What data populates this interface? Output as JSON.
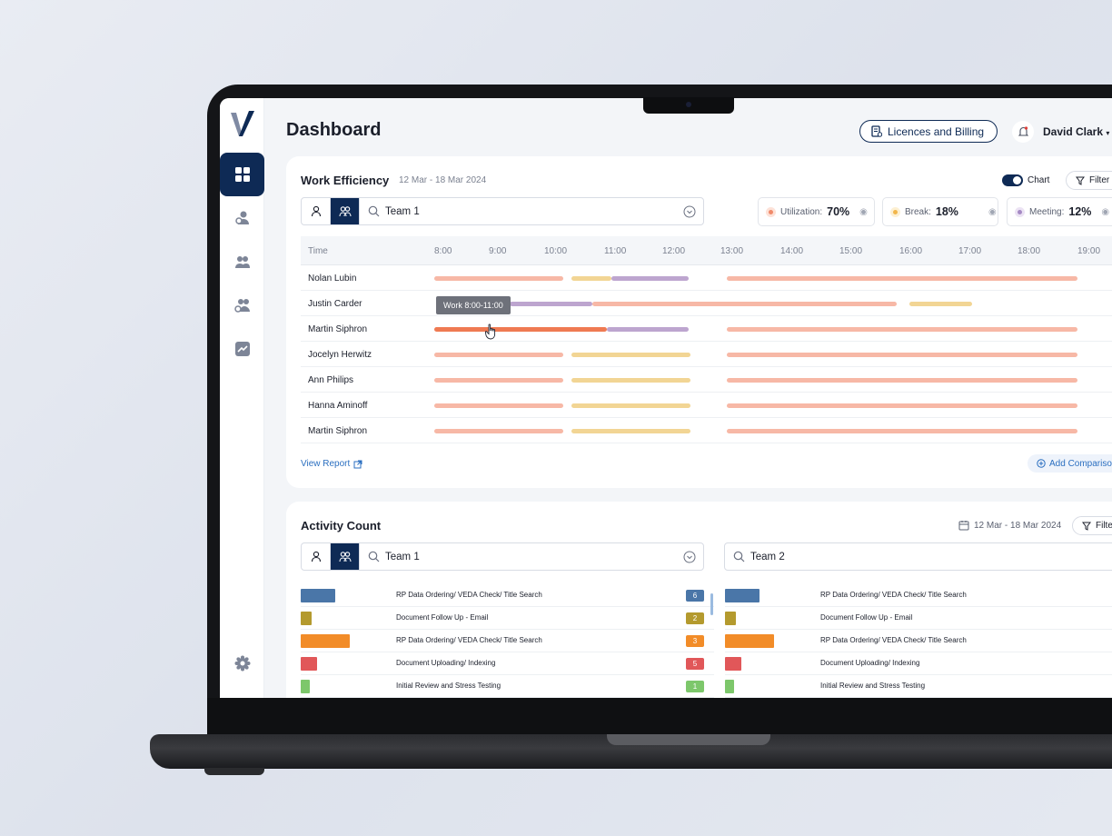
{
  "header": {
    "title": "Dashboard",
    "billing_label": "Licences and Billing",
    "user_name": "David Clark"
  },
  "work_efficiency": {
    "title": "Work Efficiency",
    "date_range": "12 Mar - 18 Mar 2024",
    "chart_toggle_label": "Chart",
    "filter_label": "Filter",
    "search_value": "Team 1",
    "metrics": [
      {
        "label": "Utilization:",
        "value": "70%",
        "color": "#f08a6a"
      },
      {
        "label": "Break:",
        "value": "18%",
        "color": "#f2b64a"
      },
      {
        "label": "Meeting:",
        "value": "12%",
        "color": "#a58ac4"
      }
    ],
    "time_header": "Time",
    "hours": [
      "8:00",
      "9:00",
      "10:00",
      "11:00",
      "12:00",
      "13:00",
      "14:00",
      "15:00",
      "16:00",
      "17:00",
      "18:00",
      "19:00"
    ],
    "tooltip": "Work 8:00-11:00",
    "rows": [
      {
        "name": "Nolan Lubin"
      },
      {
        "name": "Justin Carder"
      },
      {
        "name": "Martin Siphron"
      },
      {
        "name": "Jocelyn Herwitz"
      },
      {
        "name": "Ann Philips"
      },
      {
        "name": "Hanna Aminoff"
      },
      {
        "name": "Martin Siphron"
      }
    ],
    "view_report_label": "View Report",
    "add_comparison_label": "Add Comparison",
    "colors": {
      "work": "#f7b8a6",
      "work_active": "#ef7a52",
      "break": "#f2d594",
      "meeting": "#bda5cf"
    }
  },
  "activity_count": {
    "title": "Activity Count",
    "date_range": "12 Mar - 18 Mar 2024",
    "filter_label": "Filter",
    "left_search_value": "Team 1",
    "right_search_value": "Team 2",
    "items": [
      {
        "label": "RP Data Ordering/ VEDA Check/ Title Search",
        "count": "6",
        "color": "#4a76a8"
      },
      {
        "label": "Document Follow Up - Email",
        "count": "2",
        "color": "#b49a2e"
      },
      {
        "label": "RP Data Ordering/ VEDA Check/ Title Search",
        "count": "3",
        "color": "#f28c28"
      },
      {
        "label": "Document Uploading/ Indexing",
        "count": "5",
        "color": "#e15759"
      },
      {
        "label": "Initial Review and Stress Testing",
        "count": "1",
        "color": "#7dc76b"
      }
    ]
  }
}
